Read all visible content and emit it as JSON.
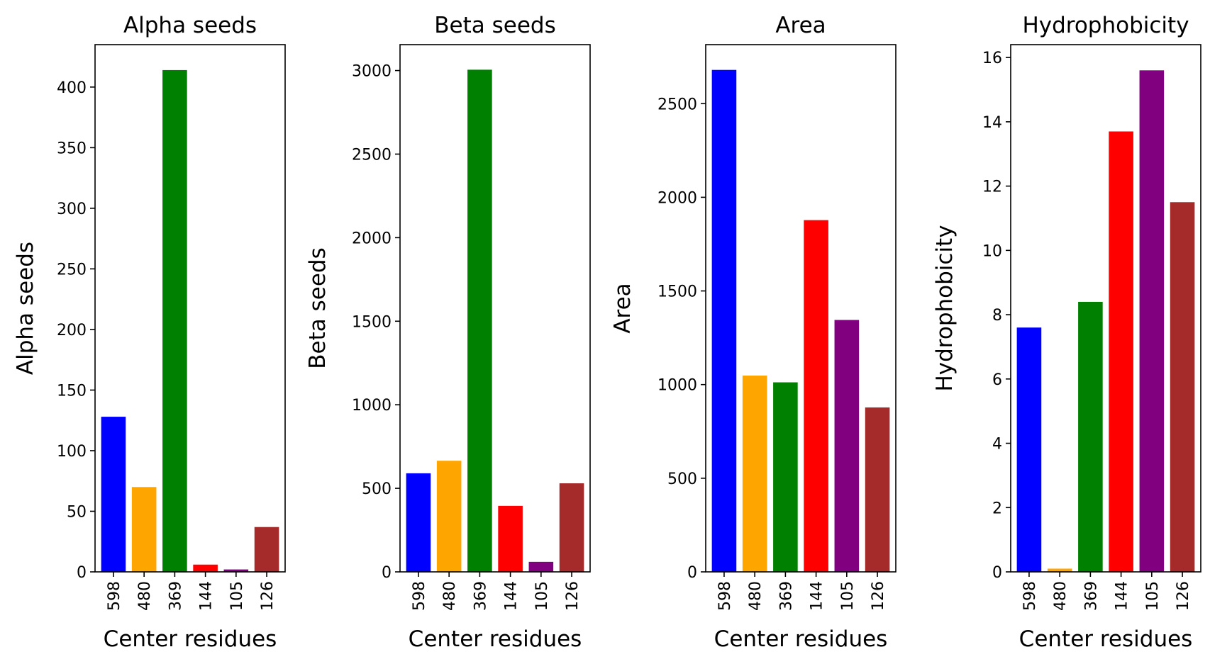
{
  "chart_data": [
    {
      "type": "bar",
      "title": "Alpha seeds",
      "xlabel": "Center residues",
      "ylabel": "Alpha seeds",
      "categories": [
        "598",
        "480",
        "369",
        "144",
        "105",
        "126"
      ],
      "values": [
        128,
        70,
        414,
        6,
        2,
        37
      ],
      "colors": [
        "#0000ff",
        "#ffa500",
        "#008000",
        "#ff0000",
        "#800080",
        "#a52a2a"
      ],
      "ylim": [
        0,
        435
      ],
      "yticks": [
        0,
        50,
        100,
        150,
        200,
        250,
        300,
        350,
        400
      ],
      "grid": false
    },
    {
      "type": "bar",
      "title": "Beta seeds",
      "xlabel": "Center residues",
      "ylabel": "Beta seeds",
      "categories": [
        "598",
        "480",
        "369",
        "144",
        "105",
        "126"
      ],
      "values": [
        590,
        665,
        3005,
        395,
        60,
        530
      ],
      "colors": [
        "#0000ff",
        "#ffa500",
        "#008000",
        "#ff0000",
        "#800080",
        "#a52a2a"
      ],
      "ylim": [
        0,
        3155
      ],
      "yticks": [
        0,
        500,
        1000,
        1500,
        2000,
        2500,
        3000
      ],
      "grid": false
    },
    {
      "type": "bar",
      "title": "Area",
      "xlabel": "Center residues",
      "ylabel": "Area",
      "categories": [
        "598",
        "480",
        "369",
        "144",
        "105",
        "126"
      ],
      "values": [
        2680,
        1048,
        1012,
        1878,
        1345,
        878
      ],
      "colors": [
        "#0000ff",
        "#ffa500",
        "#008000",
        "#ff0000",
        "#800080",
        "#a52a2a"
      ],
      "ylim": [
        0,
        2815
      ],
      "yticks": [
        0,
        500,
        1000,
        1500,
        2000,
        2500
      ],
      "grid": false
    },
    {
      "type": "bar",
      "title": "Hydrophobicity",
      "xlabel": "Center residues",
      "ylabel": "Hydrophobicity",
      "categories": [
        "598",
        "480",
        "369",
        "144",
        "105",
        "126"
      ],
      "values": [
        7.6,
        0.1,
        8.4,
        13.7,
        15.6,
        11.5
      ],
      "colors": [
        "#0000ff",
        "#ffa500",
        "#008000",
        "#ff0000",
        "#800080",
        "#a52a2a"
      ],
      "ylim": [
        0,
        16.4
      ],
      "yticks": [
        0,
        2,
        4,
        6,
        8,
        10,
        12,
        14,
        16
      ],
      "grid": false
    }
  ]
}
